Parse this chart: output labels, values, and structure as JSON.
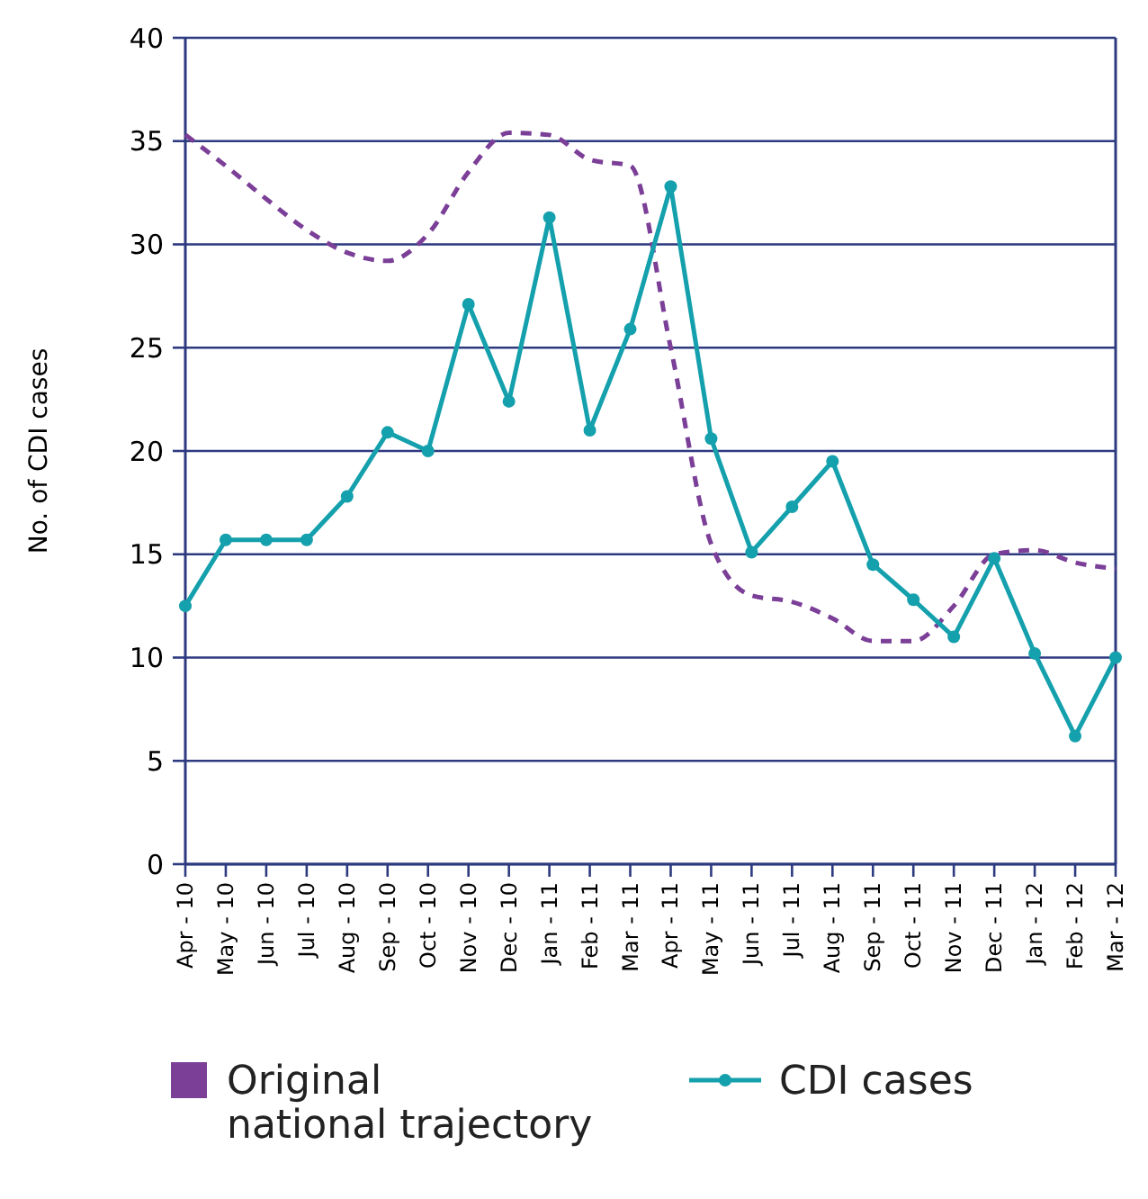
{
  "chart_data": {
    "type": "line",
    "ylabel": "No. of CDI cases",
    "categories": [
      "Apr - 10",
      "May - 10",
      "Jun - 10",
      "Jul - 10",
      "Aug - 10",
      "Sep - 10",
      "Oct - 10",
      "Nov - 10",
      "Dec - 10",
      "Jan - 11",
      "Feb - 11",
      "Mar - 11",
      "Apr - 11",
      "May - 11",
      "Jun - 11",
      "Jul - 11",
      "Aug - 11",
      "Sep - 11",
      "Oct - 11",
      "Nov - 11",
      "Dec - 11",
      "Jan - 12",
      "Feb - 12",
      "Mar - 12"
    ],
    "series": [
      {
        "name": "Original national trajectory",
        "color": "#7b3f98",
        "line_style": "dashed",
        "marker": "none",
        "values": [
          35.3,
          33.8,
          32.2,
          30.7,
          29.6,
          29.2,
          30.5,
          33.5,
          35.4,
          35.3,
          34.1,
          33.8,
          25,
          15.5,
          13,
          12.7,
          11.9,
          10.8,
          10.8,
          12.5,
          15,
          15.2,
          14.6,
          14.3
        ]
      },
      {
        "name": "CDI cases",
        "color": "#14a0ac",
        "line_style": "solid",
        "marker": "circle",
        "values": [
          12.5,
          15.7,
          15.7,
          15.7,
          17.8,
          20.9,
          20,
          27.1,
          22.4,
          31.3,
          21,
          25.9,
          32.8,
          20.6,
          15.1,
          17.3,
          19.5,
          14.5,
          12.8,
          11,
          14.8,
          10.2,
          6.2,
          10
        ]
      }
    ],
    "ylim": [
      0,
      40
    ],
    "yticks": [
      0,
      5,
      10,
      15,
      20,
      25,
      30,
      35,
      40
    ],
    "grid": "y",
    "legend": "bottom"
  }
}
